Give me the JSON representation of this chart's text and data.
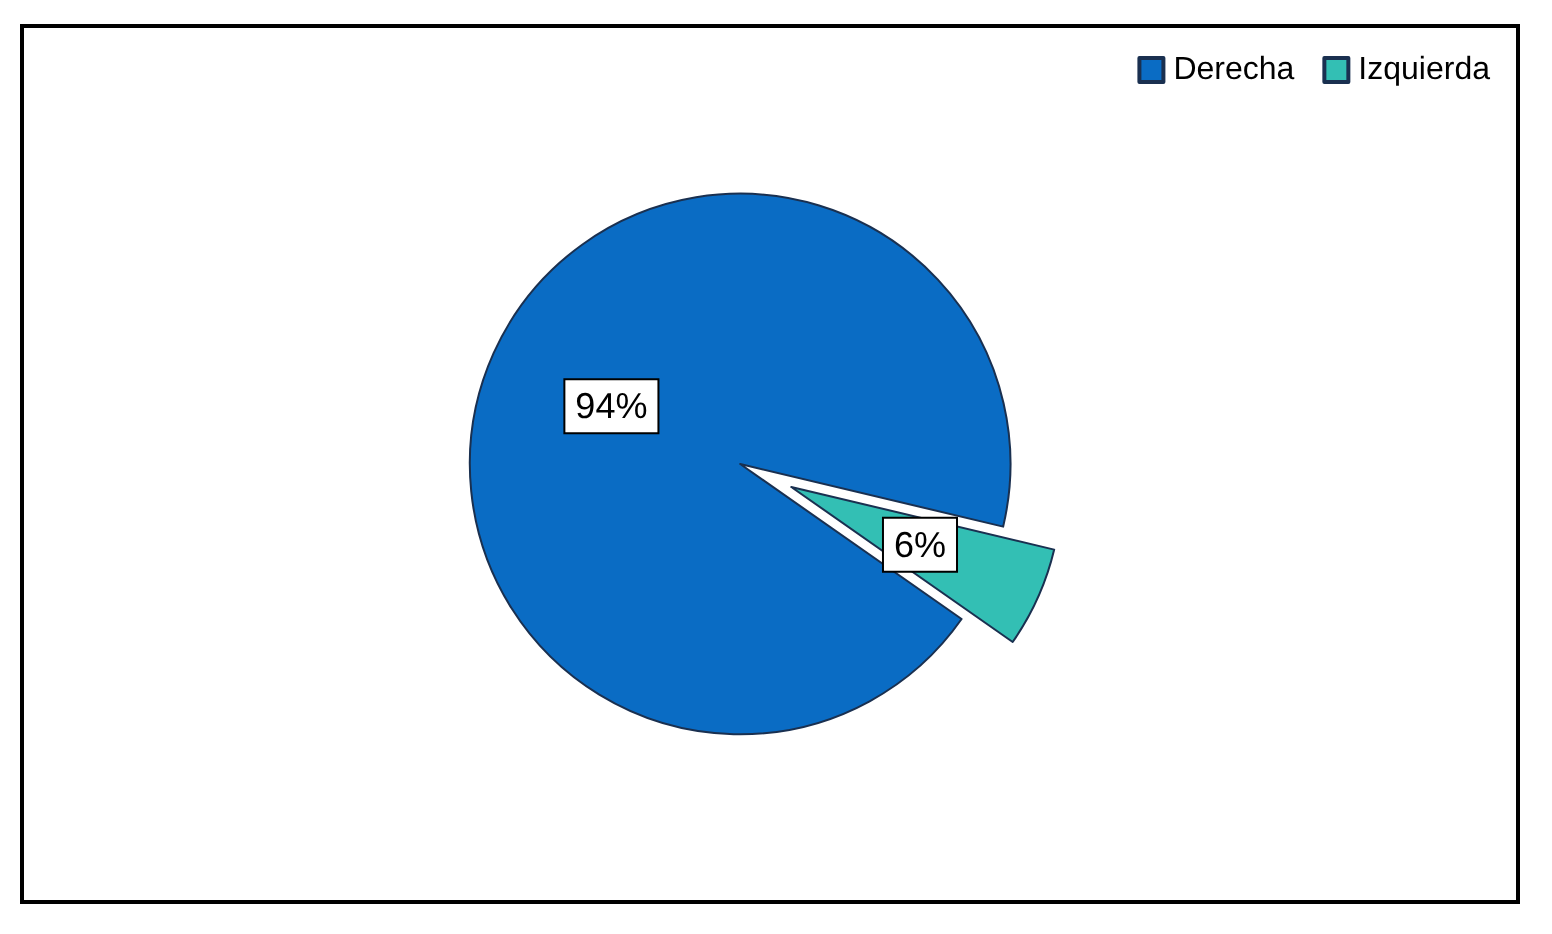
{
  "chart_data": {
    "type": "pie",
    "categories": [
      "Derecha",
      "Izquierda"
    ],
    "values": [
      94,
      6
    ],
    "colors": [
      "#0a6cc4",
      "#33bfb4"
    ],
    "value_labels": [
      "94%",
      "6%"
    ],
    "legend": "top right"
  }
}
